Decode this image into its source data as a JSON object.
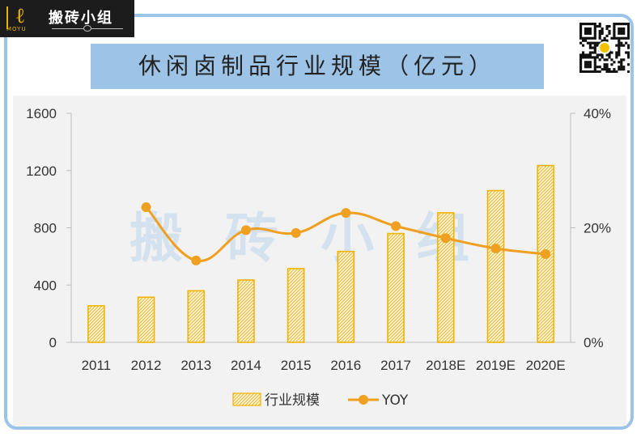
{
  "brand": {
    "logo_text": "搬砖小组",
    "logo_sub": "MOYU",
    "watermark": "搬砖小组",
    "colors": {
      "frame": "#9cc3e8",
      "title_bg": "#9dc3e6",
      "bar": "#f2b300",
      "line": "#f0a020"
    }
  },
  "chart_data": {
    "type": "bar",
    "title": "休闲卤制品行业规模（亿元）",
    "categories": [
      "2011",
      "2012",
      "2013",
      "2014",
      "2015",
      "2016",
      "2017",
      "2018E",
      "2019E",
      "2020E"
    ],
    "series": [
      {
        "name": "行业规模",
        "type": "bar",
        "axis": "left",
        "values": [
          255,
          315,
          360,
          435,
          515,
          635,
          760,
          905,
          1060,
          1235
        ]
      },
      {
        "name": "YOY",
        "type": "line",
        "axis": "right",
        "unit": "%",
        "values": [
          null,
          23.6,
          14.3,
          19.6,
          19.1,
          22.6,
          20.3,
          18.2,
          16.4,
          15.4
        ]
      }
    ],
    "left_axis": {
      "min": 0,
      "max": 1600,
      "ticks": [
        "0",
        "400",
        "800",
        "1200",
        "1600"
      ],
      "tick_values": [
        0,
        400,
        800,
        1200,
        1600
      ]
    },
    "right_axis": {
      "min": 0,
      "max": 40,
      "ticks": [
        "0%",
        "20%",
        "40%"
      ],
      "tick_values": [
        0,
        20,
        40
      ]
    },
    "legend": {
      "position": "bottom",
      "entries": [
        "行业规模",
        "YOY"
      ]
    },
    "grid": false
  }
}
